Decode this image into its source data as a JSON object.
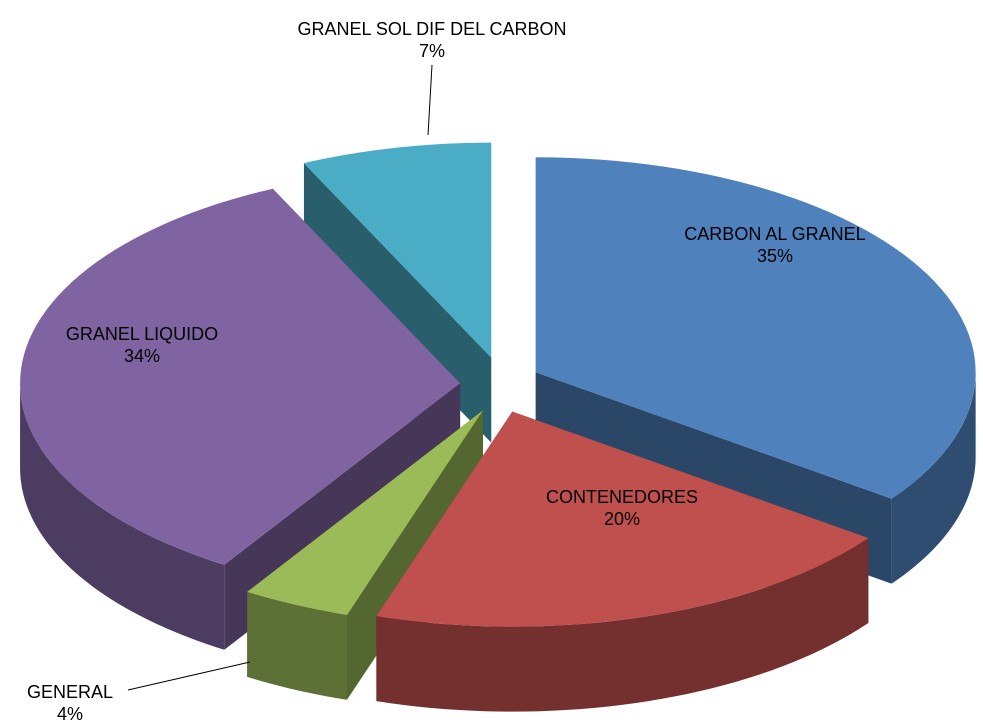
{
  "chart_data": {
    "type": "pie3d",
    "categories": [
      "CARBON AL GRANEL",
      "CONTENEDORES",
      "GENERAL",
      "GRANEL LIQUIDO",
      "GRANEL SOL DIF DEL CARBON"
    ],
    "values": [
      35,
      20,
      4,
      34,
      7
    ],
    "value_labels": [
      "35%",
      "20%",
      "4%",
      "34%",
      "7%"
    ],
    "colors": [
      "#4f81bd",
      "#c0504d",
      "#9bbb59",
      "#8064a2",
      "#4bacc6"
    ]
  }
}
